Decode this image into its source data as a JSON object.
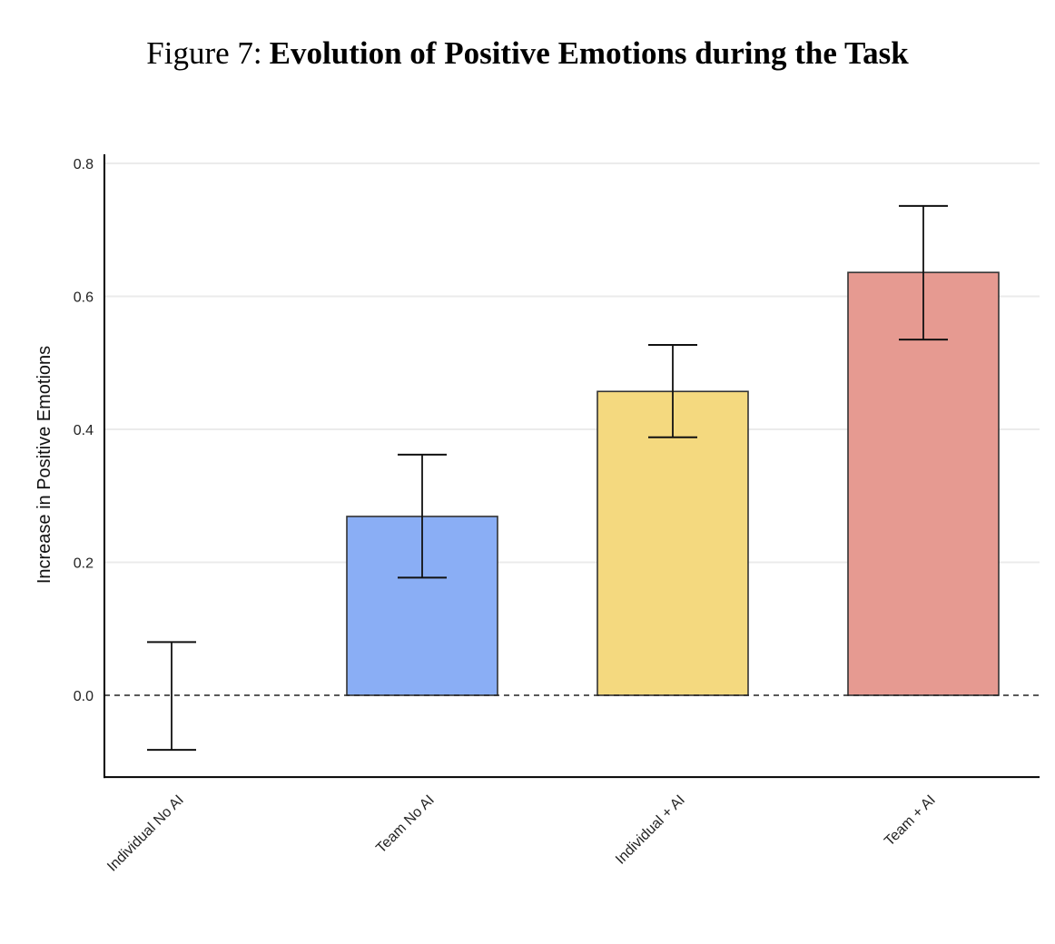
{
  "figure": {
    "prefix": "Figure 7:",
    "title": "Evolution of Positive Emotions during the Task"
  },
  "chart_data": {
    "type": "bar",
    "title": "Evolution of Positive Emotions during the Task",
    "xlabel": "",
    "ylabel": "Increase in Positive Emotions",
    "categories": [
      "Individual No AI",
      "Team No AI",
      "Individual + AI",
      "Team + AI"
    ],
    "values": [
      0.0,
      0.269,
      0.457,
      0.636
    ],
    "error_low": [
      -0.082,
      0.177,
      0.388,
      0.535
    ],
    "error_high": [
      0.08,
      0.362,
      0.527,
      0.736
    ],
    "colors": [
      "#ffffff",
      "#8aaef5",
      "#f4d97f",
      "#e69a91"
    ],
    "ylim": [
      -0.123,
      0.82
    ],
    "yticks": [
      "0.0",
      "0.2",
      "0.4",
      "0.6",
      "0.8"
    ],
    "reference_line": 0.0,
    "grid": "horizontal"
  }
}
